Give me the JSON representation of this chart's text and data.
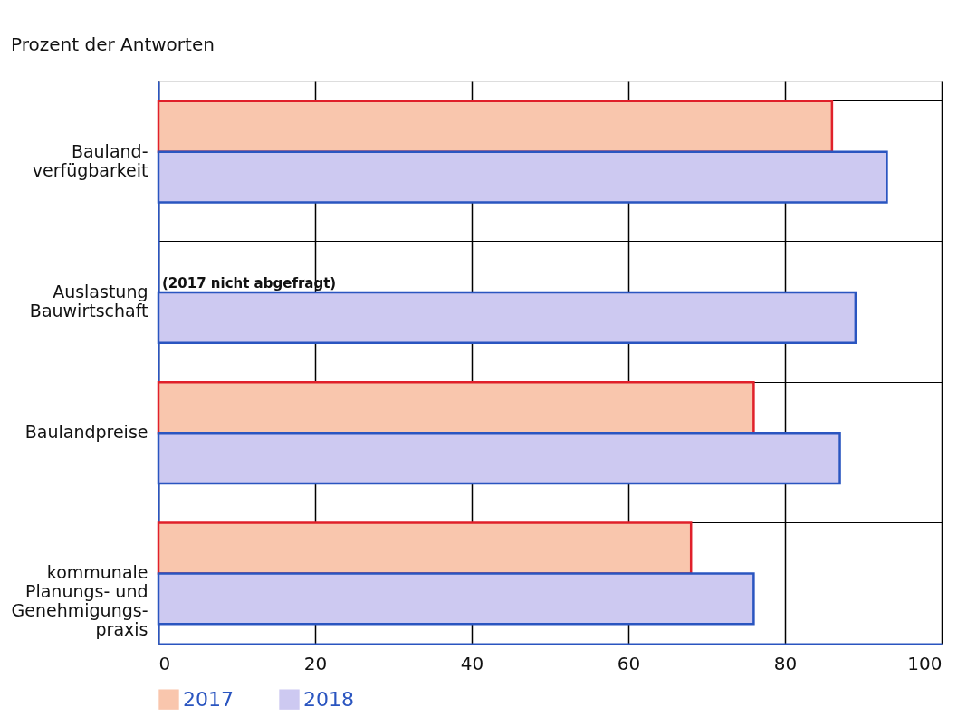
{
  "chart_data": {
    "type": "bar",
    "orientation": "horizontal",
    "title": "Prozent der Antworten",
    "categories": [
      "Bauland-\nverfügbarkeit",
      "Auslastung\nBauwirtschaft",
      "Baulandpreise",
      "kommunale\nPlanungs- und\nGenehmigungs-\npraxis"
    ],
    "series": [
      {
        "name": "2017",
        "color": "#f9c6ad",
        "values": [
          86,
          null,
          76,
          68
        ]
      },
      {
        "name": "2018",
        "color": "#cdc9f1",
        "values": [
          93,
          89,
          87,
          76
        ]
      }
    ],
    "xlim": [
      0,
      100
    ],
    "xticks": [
      0,
      20,
      40,
      60,
      80,
      100
    ],
    "grid": true,
    "legend": "bottom",
    "annotations": [
      {
        "text": "(2017 nicht abgefragt)",
        "x": 0,
        "y": "Auslastung\nBauwirtschaft"
      }
    ]
  }
}
